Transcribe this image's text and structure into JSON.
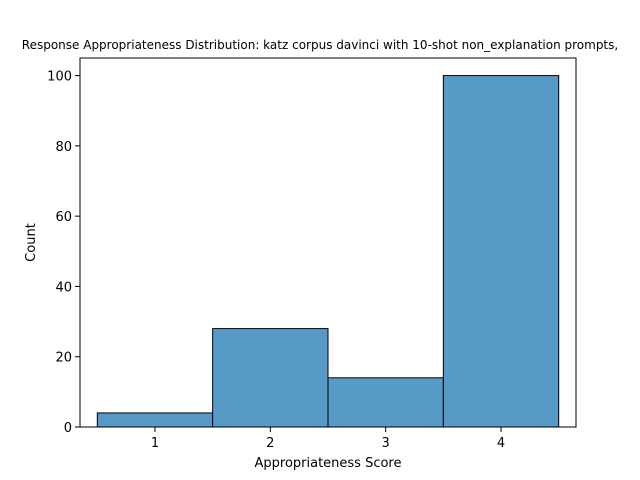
{
  "chart_data": {
    "type": "bar",
    "title": "Response Appropriateness Distribution: katz corpus davinci with 10-shot non_explanation prompts, ",
    "xlabel": "Appropriateness Score",
    "ylabel": "Count",
    "categories": [
      "1",
      "2",
      "3",
      "4"
    ],
    "values": [
      4,
      28,
      14,
      100
    ],
    "bin_edges": [
      0.5,
      1.5,
      2.5,
      3.5,
      4.5
    ],
    "xlim": [
      0.35,
      4.65
    ],
    "ylim": [
      0,
      105
    ],
    "x_ticks": [
      1,
      2,
      3,
      4
    ],
    "y_ticks": [
      0,
      20,
      40,
      60,
      80,
      100
    ],
    "grid": false,
    "legend": "none",
    "bar_color": "#5799C7",
    "edge_color": "#000000"
  }
}
